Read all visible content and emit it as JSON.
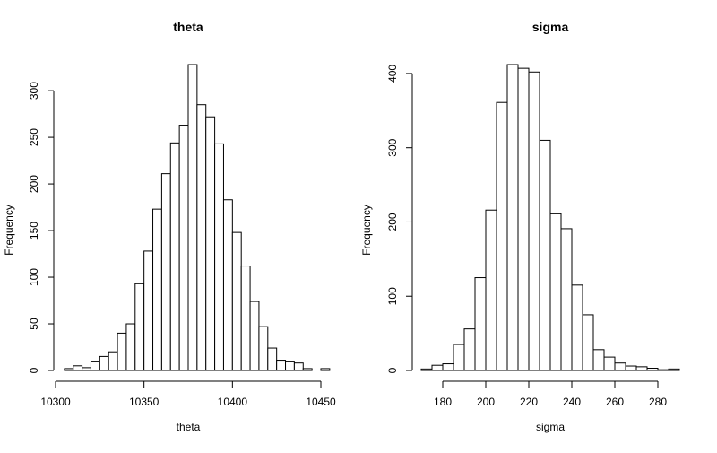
{
  "chart_data": [
    {
      "type": "bar",
      "title": "theta",
      "xlabel": "theta",
      "ylabel": "Frequency",
      "bin_width": 5,
      "bin_start": 10305,
      "counts": [
        2,
        5,
        3,
        10,
        15,
        20,
        40,
        50,
        93,
        128,
        173,
        211,
        244,
        263,
        328,
        285,
        272,
        243,
        183,
        148,
        112,
        74,
        47,
        24,
        11,
        10,
        8,
        2,
        0,
        2
      ],
      "xlim": [
        10300,
        10450
      ],
      "ylim": [
        0,
        328
      ],
      "xticks": [
        10300,
        10350,
        10400,
        10450
      ],
      "yticks": [
        0,
        50,
        100,
        150,
        200,
        250,
        300
      ]
    },
    {
      "type": "bar",
      "title": "sigma",
      "xlabel": "sigma",
      "ylabel": "Frequency",
      "bin_width": 5,
      "bin_start": 170,
      "counts": [
        2,
        7,
        9,
        35,
        56,
        125,
        216,
        361,
        412,
        407,
        402,
        310,
        211,
        191,
        115,
        75,
        28,
        18,
        10,
        6,
        5,
        3,
        1,
        2
      ],
      "xlim": [
        170,
        290
      ],
      "ylim": [
        0,
        412
      ],
      "xticks": [
        180,
        200,
        220,
        240,
        260,
        280
      ],
      "yticks": [
        0,
        100,
        200,
        300,
        400
      ]
    }
  ]
}
